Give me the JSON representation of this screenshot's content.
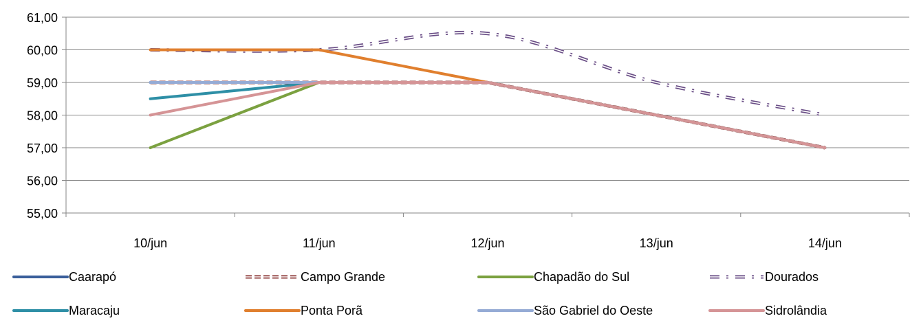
{
  "chart_data": {
    "type": "line",
    "title": "",
    "xlabel": "",
    "ylabel": "",
    "categories": [
      "10/jun",
      "11/jun",
      "12/jun",
      "13/jun",
      "14/jun"
    ],
    "ylim": [
      55,
      61
    ],
    "yticks": [
      "55,00",
      "56,00",
      "57,00",
      "58,00",
      "59,00",
      "60,00",
      "61,00"
    ],
    "grid": "horizontal",
    "legend_position": "bottom",
    "series": [
      {
        "name": "Caarapó",
        "color": "#3A5F9A",
        "style": "solid",
        "values": [
          59,
          59,
          59,
          58,
          57
        ]
      },
      {
        "name": "Campo Grande",
        "color": "#8E3B3A",
        "style": "double-dash",
        "values": [
          59,
          59,
          59,
          58,
          57
        ]
      },
      {
        "name": "Chapadão do Sul",
        "color": "#7BA140",
        "style": "solid",
        "values": [
          57,
          59,
          59,
          58,
          57
        ]
      },
      {
        "name": "Dourados",
        "color": "#6A4E86",
        "style": "dash-dot-double",
        "values": [
          60,
          60,
          60.5,
          59,
          58
        ]
      },
      {
        "name": "Maracaju",
        "color": "#2E8FA6",
        "style": "solid",
        "values": [
          58.5,
          59,
          59,
          58,
          57
        ]
      },
      {
        "name": "Ponta Porã",
        "color": "#E07F2E",
        "style": "solid",
        "values": [
          60,
          60,
          59,
          58,
          57
        ]
      },
      {
        "name": "São Gabriel do Oeste",
        "color": "#95ABD5",
        "style": "solid",
        "values": [
          59,
          59,
          59,
          58,
          57
        ]
      },
      {
        "name": "Sidrolândia",
        "color": "#D59496",
        "style": "solid",
        "values": [
          58,
          59,
          59,
          58,
          57
        ]
      }
    ]
  }
}
